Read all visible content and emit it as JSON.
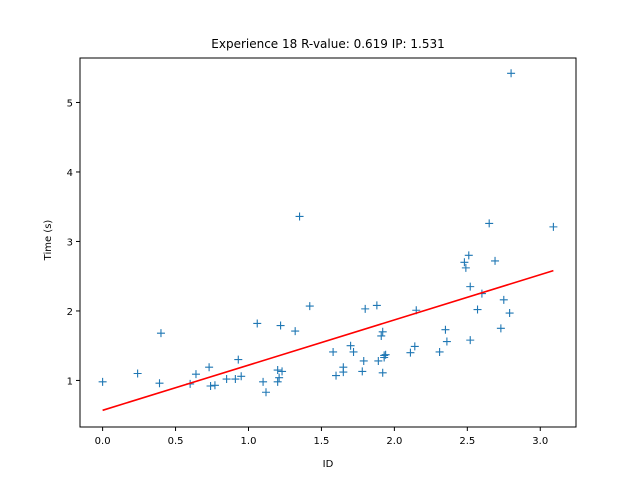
{
  "chart_data": {
    "type": "scatter",
    "title": "Experience 18 R-value: 0.619 IP: 1.531",
    "xlabel": "ID",
    "ylabel": "Time (s)",
    "xlim": [
      -0.155,
      3.245
    ],
    "ylim": [
      0.33,
      5.64
    ],
    "xticks": [
      0.0,
      0.5,
      1.0,
      1.5,
      2.0,
      2.5,
      3.0
    ],
    "xtick_labels": [
      "0.0",
      "0.5",
      "1.0",
      "1.5",
      "2.0",
      "2.5",
      "3.0"
    ],
    "yticks": [
      1,
      2,
      3,
      4,
      5
    ],
    "ytick_labels": [
      "1",
      "2",
      "3",
      "4",
      "5"
    ],
    "grid": false,
    "legend": "none",
    "marker_color": "#1f77b4",
    "fit_color": "#ff0000",
    "series": [
      {
        "marker": "plus",
        "x": [
          0.0,
          0.24,
          0.39,
          0.4,
          0.6,
          0.64,
          0.73,
          0.74,
          0.77,
          0.85,
          0.91,
          0.93,
          0.95,
          1.06,
          1.1,
          1.12,
          1.2,
          1.2,
          1.21,
          1.22,
          1.23,
          1.32,
          1.35,
          1.42,
          1.58,
          1.6,
          1.65,
          1.65,
          1.7,
          1.72,
          1.78,
          1.79,
          1.8,
          1.88,
          1.89,
          1.91,
          1.92,
          1.92,
          1.93,
          1.93,
          1.94,
          2.11,
          2.14,
          2.15,
          2.31,
          2.35,
          2.36,
          2.48,
          2.49,
          2.51,
          2.52,
          2.52,
          2.57,
          2.6,
          2.65,
          2.69,
          2.73,
          2.75,
          2.79,
          2.8,
          3.09
        ],
        "y": [
          0.98,
          1.1,
          0.96,
          1.68,
          0.95,
          1.09,
          1.19,
          0.92,
          0.93,
          1.02,
          1.02,
          1.3,
          1.06,
          1.82,
          0.98,
          0.83,
          1.15,
          0.98,
          1.04,
          1.79,
          1.13,
          1.71,
          3.36,
          2.07,
          1.41,
          1.07,
          1.12,
          1.19,
          1.5,
          1.41,
          1.13,
          1.28,
          2.03,
          2.08,
          1.28,
          1.64,
          1.7,
          1.11,
          1.33,
          1.36,
          1.37,
          1.4,
          1.49,
          2.01,
          1.41,
          1.73,
          1.56,
          2.7,
          2.62,
          2.8,
          1.58,
          2.35,
          2.02,
          2.25,
          3.26,
          2.72,
          1.75,
          2.16,
          1.97,
          5.42,
          3.21
        ]
      },
      {
        "marker": "line",
        "x": [
          0.0,
          3.09
        ],
        "y": [
          0.57,
          2.58
        ]
      }
    ]
  }
}
